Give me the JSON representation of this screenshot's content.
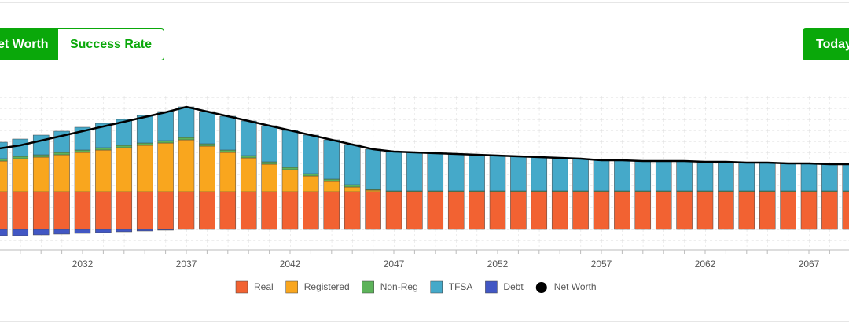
{
  "buttons": {
    "net_worth": "Net Worth",
    "success_rate": "Success Rate",
    "today": "Today"
  },
  "chart_data": {
    "type": "bar",
    "stacked": true,
    "categories": [
      null,
      null,
      null,
      null,
      "2032",
      null,
      null,
      null,
      null,
      "2037",
      null,
      null,
      null,
      null,
      "2042",
      null,
      null,
      null,
      null,
      "2047",
      null,
      null,
      null,
      null,
      "2052",
      null,
      null,
      null,
      null,
      "2057",
      null,
      null,
      null,
      null,
      "2062",
      null,
      null,
      null,
      null,
      "2067",
      null,
      null
    ],
    "ylim": [
      -26,
      170
    ],
    "grid": true,
    "series": [
      {
        "name": "Real",
        "color": "#f26232",
        "values": [
          48,
          48,
          48,
          48,
          48,
          48,
          48,
          48,
          48,
          48,
          48,
          48,
          48,
          48,
          48,
          48,
          48,
          48,
          48,
          48,
          48,
          48,
          48,
          48,
          48,
          48,
          48,
          48,
          48,
          48,
          48,
          48,
          48,
          48,
          48,
          48,
          48,
          48,
          48,
          48,
          48,
          48
        ]
      },
      {
        "name": "Registered",
        "color": "#f9a61e",
        "values": [
          39,
          42,
          44,
          47,
          50,
          53,
          56,
          59,
          62,
          66,
          58,
          50,
          43,
          35,
          28,
          20,
          13,
          6,
          2,
          0,
          0,
          0,
          0,
          0,
          0,
          0,
          0,
          0,
          0,
          0,
          0,
          0,
          0,
          0,
          0,
          0,
          0,
          0,
          0,
          0,
          0,
          0
        ]
      },
      {
        "name": "Non-Reg",
        "color": "#5db35a",
        "values": [
          3,
          3,
          3,
          3,
          3,
          3,
          3,
          3,
          3,
          3,
          3,
          3,
          3,
          3,
          3,
          3,
          3,
          3,
          1,
          1,
          1,
          1,
          1,
          1,
          1,
          1,
          1,
          1,
          1,
          1,
          1,
          1,
          1,
          1,
          1,
          1,
          1,
          1,
          1,
          1,
          1,
          1
        ]
      },
      {
        "name": "TFSA",
        "color": "#45a9c9",
        "values": [
          21,
          22,
          25,
          27,
          29,
          31,
          33,
          35,
          37,
          39,
          41,
          43,
          44,
          46,
          47,
          49,
          50,
          51,
          51,
          50,
          49,
          48,
          47,
          46,
          45,
          44,
          43,
          42,
          41,
          39,
          39,
          38,
          38,
          38,
          37,
          37,
          36,
          36,
          35,
          35,
          34,
          34
        ]
      },
      {
        "name": "Debt",
        "color": "#4257c4",
        "values": [
          -8,
          -8,
          -7,
          -6,
          -5,
          -4,
          -3,
          -2,
          -1,
          0,
          0,
          0,
          0,
          0,
          0,
          0,
          0,
          0,
          0,
          0,
          0,
          0,
          0,
          0,
          0,
          0,
          0,
          0,
          0,
          0,
          0,
          0,
          0,
          0,
          0,
          0,
          0,
          0,
          0,
          0,
          0,
          0
        ]
      },
      {
        "name": "Net Worth",
        "color": "#000000",
        "type": "line",
        "values": [
          103,
          107,
          113,
          119,
          125,
          131,
          137,
          143,
          149,
          156,
          150,
          144,
          138,
          132,
          126,
          120,
          114,
          108,
          102,
          99,
          98,
          97,
          96,
          95,
          94,
          93,
          92,
          91,
          90,
          88,
          88,
          87,
          87,
          87,
          86,
          86,
          85,
          85,
          84,
          84,
          83,
          83
        ]
      }
    ]
  }
}
